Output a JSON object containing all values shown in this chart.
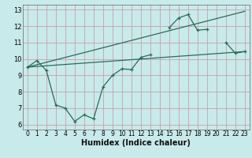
{
  "xlabel": "Humidex (Indice chaleur)",
  "bg_color": "#c8eaea",
  "grid_color": "#c8a0a8",
  "line_color": "#2a6b5a",
  "xlim": [
    -0.5,
    23.5
  ],
  "ylim": [
    5.7,
    13.3
  ],
  "xticks": [
    0,
    1,
    2,
    3,
    4,
    5,
    6,
    7,
    8,
    9,
    10,
    11,
    12,
    13,
    14,
    15,
    16,
    17,
    18,
    19,
    20,
    21,
    22,
    23
  ],
  "yticks": [
    6,
    7,
    8,
    9,
    10,
    11,
    12,
    13
  ],
  "zigzag_x": [
    0,
    1,
    2,
    3,
    4,
    5,
    6,
    7,
    8,
    9,
    10,
    11,
    12,
    13,
    15,
    16,
    17,
    18,
    19,
    21,
    22,
    23
  ],
  "zigzag_y": [
    9.5,
    9.9,
    9.3,
    7.2,
    7.0,
    6.2,
    6.6,
    6.35,
    8.3,
    9.0,
    9.4,
    9.35,
    10.1,
    10.25,
    11.9,
    12.5,
    12.7,
    11.75,
    11.8,
    11.0,
    10.35,
    10.45
  ],
  "line1_x": [
    0,
    23
  ],
  "line1_y": [
    9.5,
    10.45
  ],
  "line2_x": [
    0,
    23
  ],
  "line2_y": [
    9.5,
    12.9
  ],
  "xlabel_fontsize": 7,
  "tick_fontsize": 5.5
}
